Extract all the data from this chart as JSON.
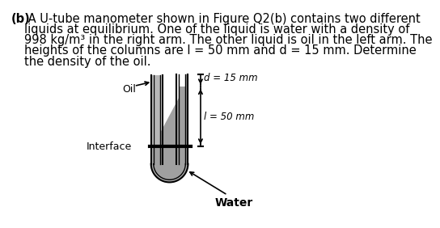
{
  "title_bold": "(b)",
  "text_lines": [
    " A U-tube manometer shown in Figure Q2(b) contains two different",
    "liquids at equilibrium. One of the liquid is water with a density of",
    "998 kg/m³ in the right arm. The other liquid is oil in the left arm. The",
    "heights of the columns are l = 50 mm and d = 15 mm. Determine",
    "the density of the oil."
  ],
  "bg_color": "#ffffff",
  "tube_fill": "#b0b0b0",
  "tube_border": "#000000",
  "water_fill": "#a0a0a0",
  "oil_fill": "#b8b8b8",
  "label_oil": "Oil",
  "label_interface": "Interface",
  "label_water": "Water",
  "label_d": "d = 15 mm",
  "label_l": "l = 50 mm",
  "font_size_text": 10.5,
  "font_size_label": 9,
  "font_size_dim": 8.5
}
